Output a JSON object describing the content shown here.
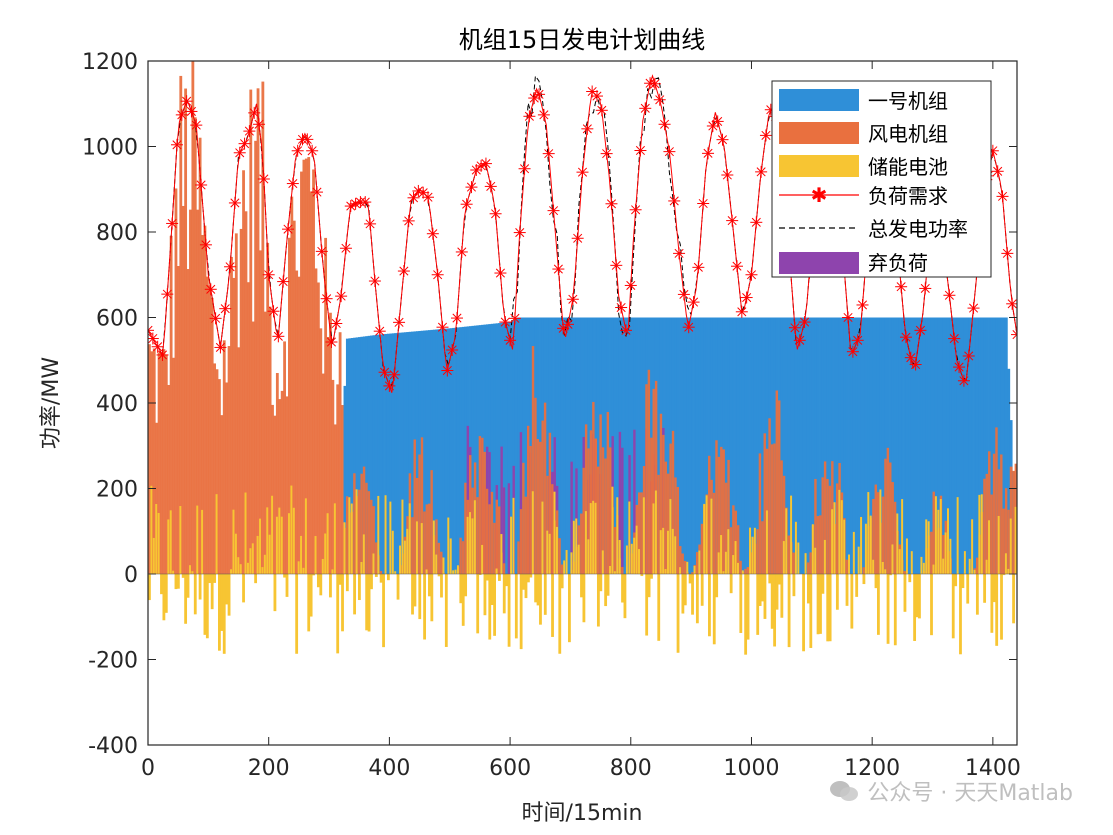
{
  "chart_data": {
    "type": "bar",
    "stacked": true,
    "title": "机组15日发电计划曲线",
    "xlabel": "时间/15min",
    "ylabel": "功率/MW",
    "xlim": [
      0,
      1440
    ],
    "ylim": [
      -400,
      1200
    ],
    "xticks": [
      0,
      200,
      400,
      600,
      800,
      1000,
      1200,
      1400
    ],
    "yticks": [
      -400,
      -200,
      0,
      200,
      400,
      600,
      800,
      1000,
      1200
    ],
    "legend_position": "top-right",
    "colors": {
      "unit1": "#2f8fd8",
      "wind": "#e9703f",
      "storage": "#f7c533",
      "load": "#ff0000",
      "total": "#000000",
      "curtail": "#8e44ad"
    },
    "series": [
      {
        "name": "一号机组",
        "kind": "bar"
      },
      {
        "name": "风电机组",
        "kind": "bar"
      },
      {
        "name": "储能电池",
        "kind": "bar"
      },
      {
        "name": "负荷需求",
        "kind": "line-star"
      },
      {
        "name": "总发电功率",
        "kind": "line-dashed"
      },
      {
        "name": "弃负荷",
        "kind": "bar"
      }
    ],
    "load_points": [
      [
        0,
        570
      ],
      [
        25,
        510
      ],
      [
        40,
        820
      ],
      [
        50,
        1050
      ],
      [
        65,
        1110
      ],
      [
        80,
        1050
      ],
      [
        100,
        700
      ],
      [
        120,
        530
      ],
      [
        135,
        700
      ],
      [
        150,
        980
      ],
      [
        165,
        1020
      ],
      [
        180,
        1100
      ],
      [
        190,
        980
      ],
      [
        200,
        700
      ],
      [
        215,
        540
      ],
      [
        230,
        780
      ],
      [
        245,
        980
      ],
      [
        260,
        1030
      ],
      [
        275,
        980
      ],
      [
        290,
        720
      ],
      [
        305,
        530
      ],
      [
        320,
        650
      ],
      [
        335,
        860
      ],
      [
        350,
        870
      ],
      [
        365,
        870
      ],
      [
        375,
        700
      ],
      [
        390,
        480
      ],
      [
        405,
        420
      ],
      [
        420,
        650
      ],
      [
        435,
        870
      ],
      [
        450,
        900
      ],
      [
        465,
        880
      ],
      [
        480,
        700
      ],
      [
        495,
        470
      ],
      [
        510,
        560
      ],
      [
        525,
        850
      ],
      [
        545,
        950
      ],
      [
        560,
        960
      ],
      [
        575,
        860
      ],
      [
        590,
        600
      ],
      [
        605,
        520
      ],
      [
        615,
        780
      ],
      [
        630,
        1060
      ],
      [
        645,
        1140
      ],
      [
        660,
        1050
      ],
      [
        675,
        800
      ],
      [
        690,
        540
      ],
      [
        705,
        650
      ],
      [
        720,
        940
      ],
      [
        735,
        1130
      ],
      [
        750,
        1110
      ],
      [
        765,
        920
      ],
      [
        780,
        650
      ],
      [
        795,
        550
      ],
      [
        805,
        800
      ],
      [
        820,
        1060
      ],
      [
        835,
        1170
      ],
      [
        850,
        1100
      ],
      [
        865,
        980
      ],
      [
        880,
        750
      ],
      [
        895,
        570
      ],
      [
        910,
        680
      ],
      [
        925,
        960
      ],
      [
        940,
        1080
      ],
      [
        955,
        1000
      ],
      [
        970,
        800
      ],
      [
        985,
        600
      ],
      [
        1000,
        700
      ],
      [
        1015,
        930
      ],
      [
        1030,
        1090
      ],
      [
        1045,
        1060
      ],
      [
        1060,
        800
      ],
      [
        1075,
        520
      ],
      [
        1090,
        600
      ],
      [
        1105,
        860
      ],
      [
        1120,
        970
      ],
      [
        1135,
        950
      ],
      [
        1150,
        780
      ],
      [
        1165,
        510
      ],
      [
        1180,
        560
      ],
      [
        1195,
        820
      ],
      [
        1210,
        900
      ],
      [
        1225,
        950
      ],
      [
        1240,
        800
      ],
      [
        1255,
        560
      ],
      [
        1270,
        470
      ],
      [
        1285,
        620
      ],
      [
        1300,
        860
      ],
      [
        1310,
        830
      ],
      [
        1325,
        690
      ],
      [
        1340,
        500
      ],
      [
        1355,
        440
      ],
      [
        1370,
        650
      ],
      [
        1385,
        880
      ],
      [
        1400,
        990
      ],
      [
        1415,
        900
      ],
      [
        1430,
        650
      ],
      [
        1440,
        560
      ]
    ],
    "unit1_profile": [
      [
        0,
        0
      ],
      [
        320,
        0
      ],
      [
        325,
        550
      ],
      [
        380,
        560
      ],
      [
        420,
        565
      ],
      [
        500,
        575
      ],
      [
        600,
        590
      ],
      [
        610,
        600
      ],
      [
        1420,
        600
      ],
      [
        1440,
        0
      ]
    ]
  },
  "watermark": {
    "text": "公众号 · 天天Matlab"
  }
}
